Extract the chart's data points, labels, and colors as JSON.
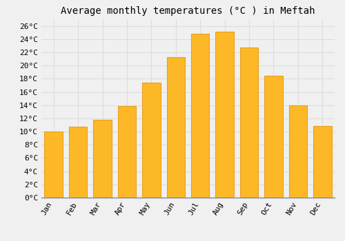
{
  "title": "Average monthly temperatures (°C ) in Meftah",
  "months": [
    "Jan",
    "Feb",
    "Mar",
    "Apr",
    "May",
    "Jun",
    "Jul",
    "Aug",
    "Sep",
    "Oct",
    "Nov",
    "Dec"
  ],
  "values": [
    10.0,
    10.7,
    11.8,
    13.9,
    17.4,
    21.3,
    24.8,
    25.1,
    22.7,
    18.5,
    14.0,
    10.8
  ],
  "bar_color": "#FDB827",
  "bar_edge_color": "#E8A020",
  "background_color": "#F0F0F0",
  "plot_bg_color": "#F0F0F0",
  "grid_color": "#DDDDDD",
  "ylim": [
    0,
    27
  ],
  "ytick_step": 2,
  "title_fontsize": 10,
  "tick_fontsize": 8,
  "tick_font_family": "monospace",
  "bar_width": 0.75
}
